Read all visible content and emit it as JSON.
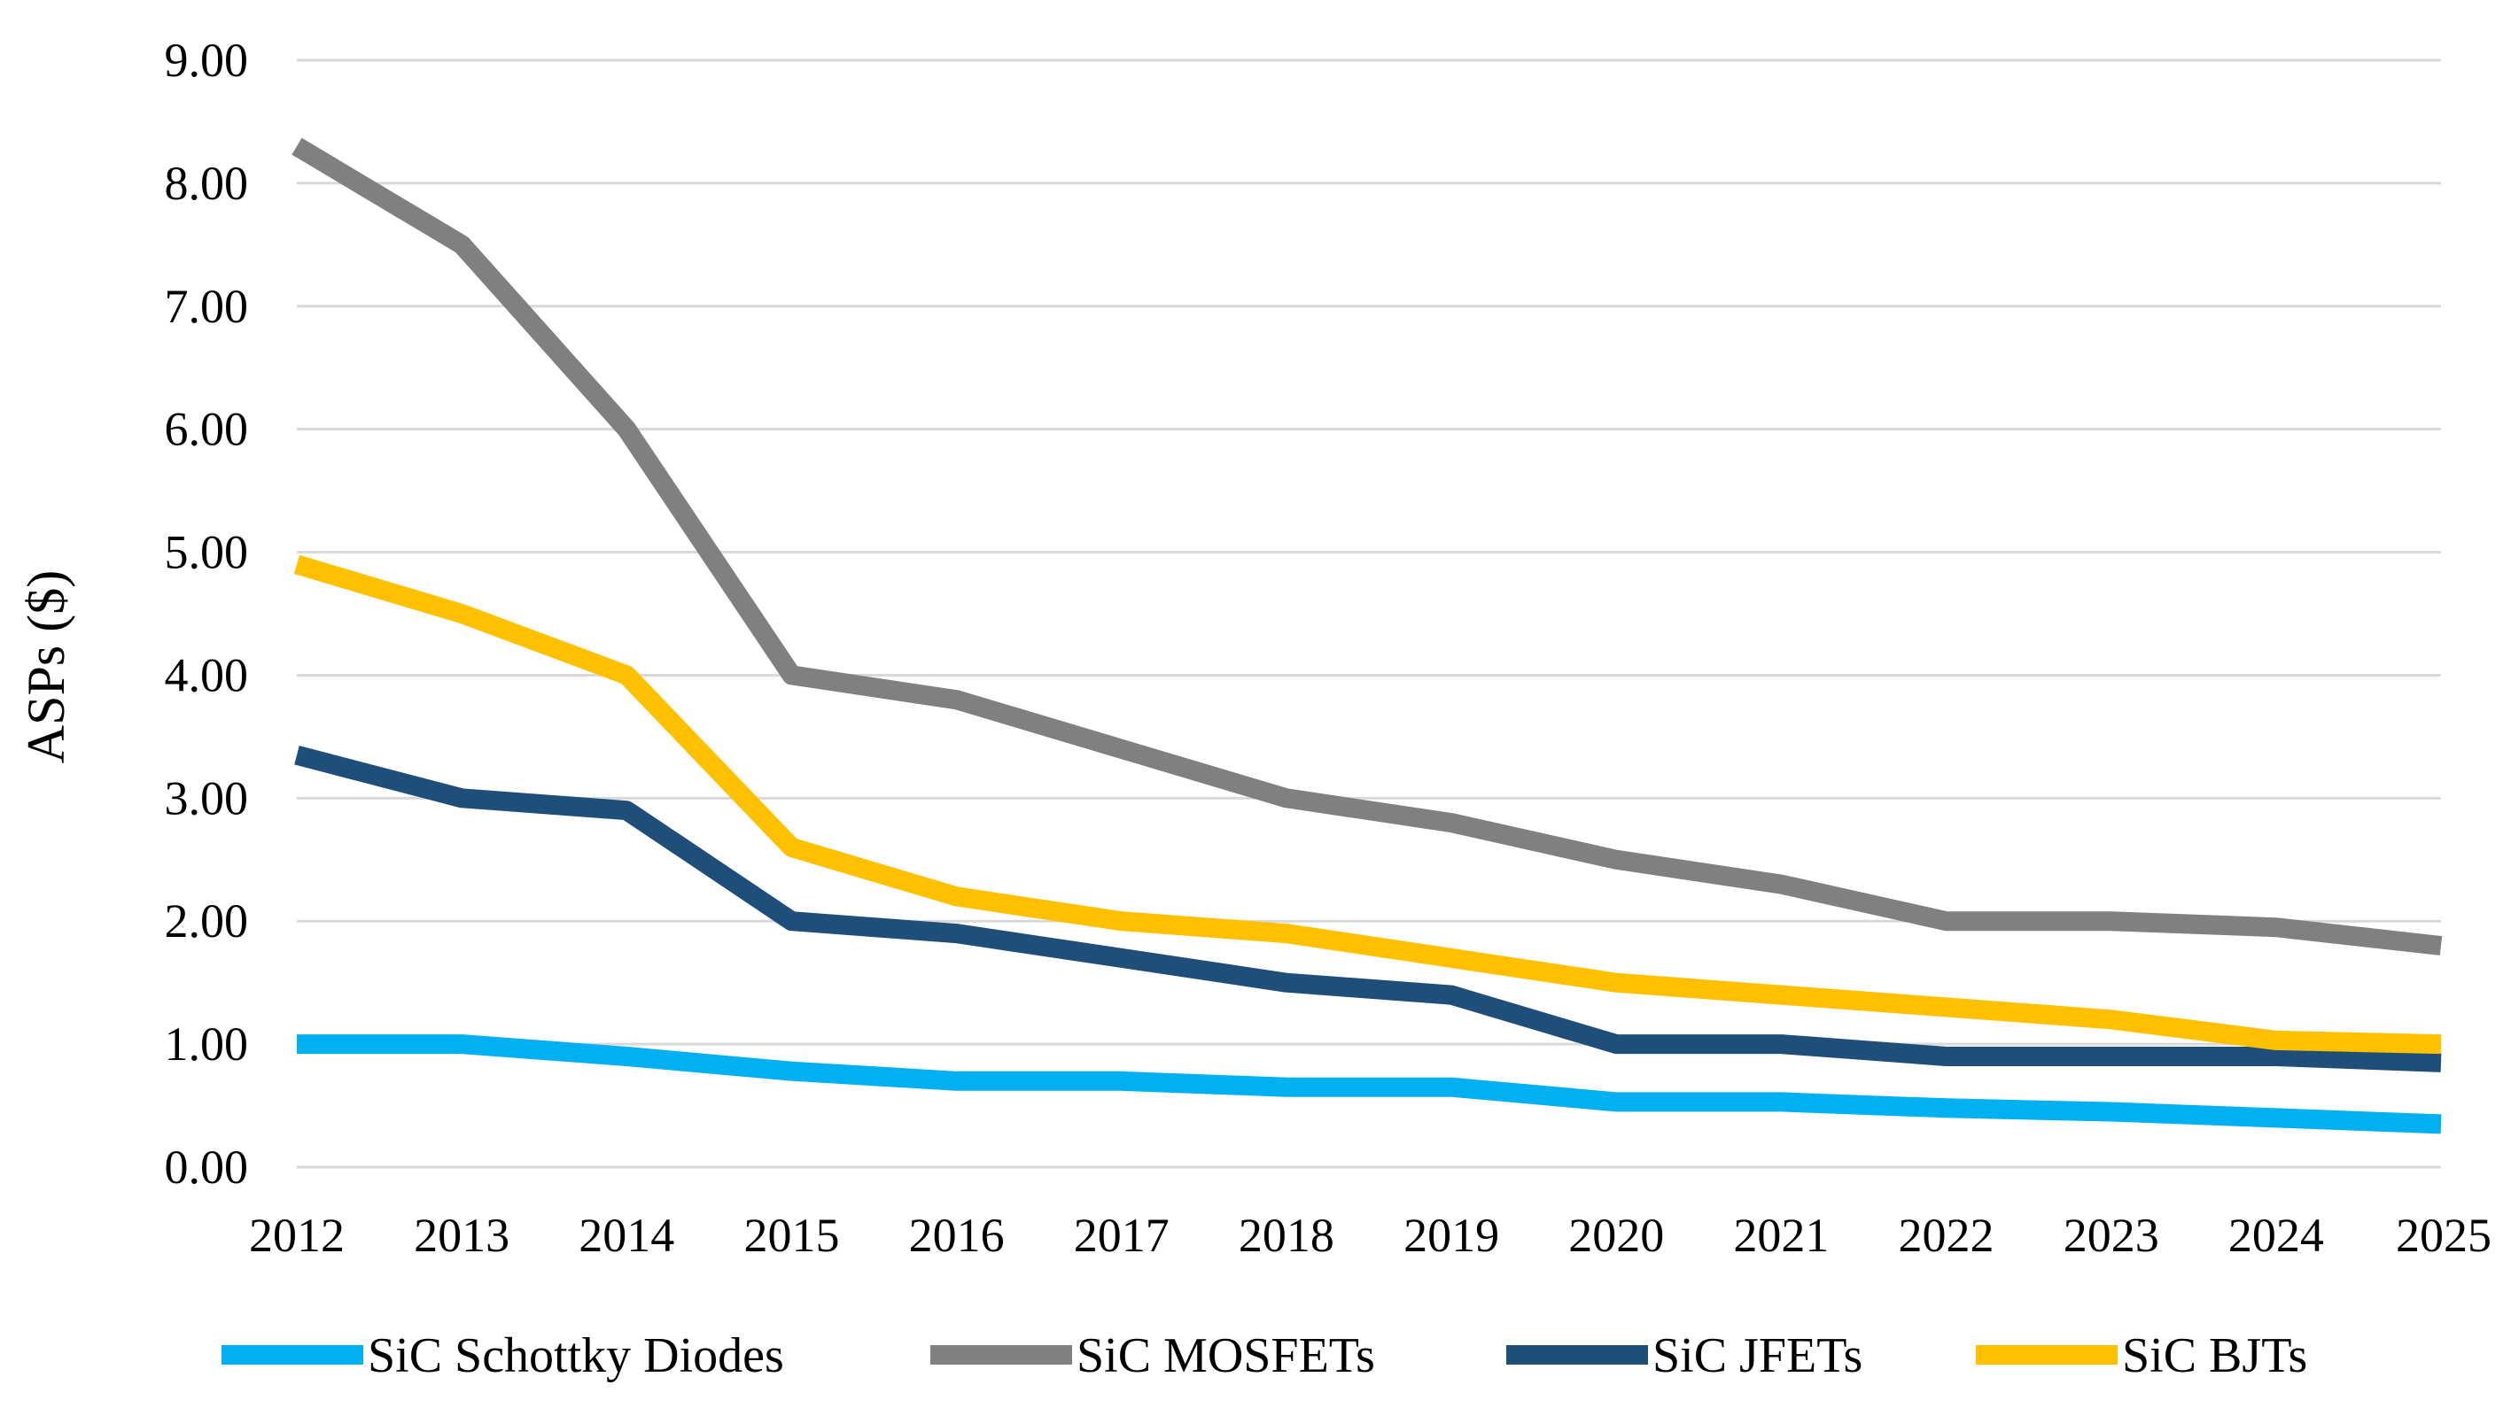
{
  "chart_data": {
    "type": "line",
    "title": "",
    "xlabel": "",
    "ylabel": "ASPs ($)",
    "ylim": [
      0,
      9
    ],
    "yticks": [
      "0.00",
      "1.00",
      "2.00",
      "3.00",
      "4.00",
      "5.00",
      "6.00",
      "7.00",
      "8.00",
      "9.00"
    ],
    "grid": true,
    "legend_position": "bottom",
    "x": [
      "2012",
      "2013",
      "2014",
      "2015",
      "2016",
      "2017",
      "2018",
      "2019",
      "2020",
      "2021",
      "2022",
      "2023",
      "2024",
      "2025"
    ],
    "series": [
      {
        "name": "SiC Schottky Diodes",
        "color": "#00b0f0",
        "values": [
          1.0,
          1.0,
          0.9,
          0.78,
          0.7,
          0.7,
          0.65,
          0.65,
          0.53,
          0.53,
          0.48,
          0.45,
          0.4,
          0.35
        ]
      },
      {
        "name": "SiC MOSFETs",
        "color": "#808080",
        "values": [
          8.3,
          7.5,
          6.0,
          4.0,
          3.8,
          3.4,
          3.0,
          2.8,
          2.5,
          2.3,
          2.0,
          2.0,
          1.95,
          1.8
        ]
      },
      {
        "name": "SiC JFETs",
        "color": "#1f4e79",
        "values": [
          3.35,
          3.0,
          2.9,
          2.0,
          1.9,
          1.7,
          1.5,
          1.4,
          1.0,
          1.0,
          0.9,
          0.9,
          0.9,
          0.85
        ]
      },
      {
        "name": "SiC BJTs",
        "color": "#ffc000",
        "values": [
          4.9,
          4.5,
          4.0,
          2.6,
          2.2,
          2.0,
          1.9,
          1.7,
          1.5,
          1.4,
          1.3,
          1.2,
          1.03,
          1.0
        ]
      }
    ]
  }
}
